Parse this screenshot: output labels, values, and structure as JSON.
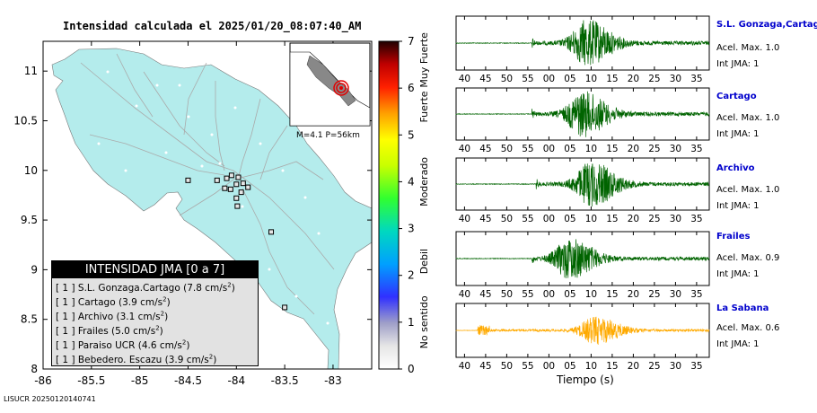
{
  "title": "Intensidad calculada el 2025/01/20_08:07:40_AM",
  "footer_code": "LISUCR 20250120140741",
  "map": {
    "x_ticks": [
      "-86",
      "-85.5",
      "-85",
      "-84.5",
      "-84",
      "-83.5",
      "-83"
    ],
    "y_ticks": [
      "11",
      "10.5",
      "10",
      "9.5",
      "9",
      "8.5",
      "8"
    ],
    "land_color": "#b4ecec",
    "inset_label": "M=4.1 P=56km"
  },
  "colorbar": {
    "ticks": [
      "0",
      "1",
      "2",
      "3",
      "4",
      "5",
      "6",
      "7"
    ],
    "bands": [
      "No sentido",
      "Debil",
      "Moderado",
      "Fuerte",
      "Muy Fuerte"
    ]
  },
  "legend": {
    "title": "INTENSIDAD JMA [0 a 7]",
    "rows": [
      {
        "level": "[ 1 ]",
        "name": "S.L. Gonzaga.Cartago",
        "value": "(7.8 cm/s",
        "unit_exp": "2",
        ")": ")"
      },
      {
        "level": "[ 1 ]",
        "name": "Cartago",
        "value": "(3.9 cm/s",
        "unit_exp": "2"
      },
      {
        "level": "[ 1 ]",
        "name": "Archivo",
        "value": "(3.1 cm/s",
        "unit_exp": "2"
      },
      {
        "level": "[ 1 ]",
        "name": "Frailes",
        "value": "(5.0 cm/s",
        "unit_exp": "2"
      },
      {
        "level": "[ 1 ]",
        "name": "Paraiso UCR",
        "value": "(4.6 cm/s",
        "unit_exp": "2"
      },
      {
        "level": "[ 1 ]",
        "name": "Bebedero. Escazu",
        "value": "(3.9 cm/s",
        "unit_exp": "2"
      }
    ],
    "close_paren": ")"
  },
  "stations": [
    {
      "name": "S.L. Gonzaga,Cartago",
      "accel": "Acel. Max. 1.0",
      "jma": "Int JMA: 1",
      "color": "#006400",
      "ticks": [
        "40",
        "45",
        "50",
        "55",
        "00",
        "05",
        "10",
        "15",
        "20",
        "25",
        "30",
        "35"
      ]
    },
    {
      "name": "Cartago",
      "accel": "Acel. Max. 1.0",
      "jma": "Int JMA: 1",
      "color": "#006400",
      "ticks": [
        "40",
        "45",
        "50",
        "55",
        "00",
        "05",
        "10",
        "15",
        "20",
        "25",
        "30",
        "35"
      ]
    },
    {
      "name": "Archivo",
      "accel": "Acel. Max. 1.0",
      "jma": "Int JMA: 1",
      "color": "#006400",
      "ticks": [
        "40",
        "45",
        "50",
        "55",
        "00",
        "05",
        "10",
        "15",
        "20",
        "25",
        "30",
        "35"
      ]
    },
    {
      "name": "Frailes",
      "accel": "Acel. Max. 0.9",
      "jma": "Int JMA: 1",
      "color": "#006400",
      "ticks": [
        "40",
        "45",
        "50",
        "55",
        "00",
        "05",
        "10",
        "15",
        "20",
        "25",
        "30",
        "35"
      ]
    },
    {
      "name": "La Sabana",
      "accel": "Acel. Max. 0.6",
      "jma": "Int JMA: 1",
      "color": "#ffaa00",
      "ticks": [
        "40",
        "45",
        "50",
        "55",
        "00",
        "05",
        "10",
        "15",
        "20",
        "25",
        "30",
        "35"
      ]
    }
  ],
  "waveform_xlabel": "Tiempo (s)",
  "chart_data": [
    {
      "type": "scatter",
      "title": "Intensidad calculada el 2025/01/20_08:07:40_AM",
      "xlabel": "",
      "ylabel": "",
      "xlim": [
        -86,
        -82.6
      ],
      "ylim": [
        8,
        11.3
      ],
      "x_ticks": [
        -86,
        -85.5,
        -85,
        -84.5,
        -84,
        -83.5,
        -83
      ],
      "y_ticks": [
        8,
        8.5,
        9,
        9.5,
        10,
        10.5,
        11
      ],
      "series": [
        {
          "name": "",
          "points": [
            {
              "lon": -84.1,
              "lat": 9.92
            },
            {
              "lon": -84.05,
              "lat": 9.95
            },
            {
              "lon": -83.98,
              "lat": 9.93
            },
            {
              "lon": -84.0,
              "lat": 9.86
            },
            {
              "lon": -83.93,
              "lat": 9.87
            },
            {
              "lon": -84.12,
              "lat": 9.82
            },
            {
              "lon": -84.06,
              "lat": 9.81
            },
            {
              "lon": -83.88,
              "lat": 9.83
            },
            {
              "lon": -84.2,
              "lat": 9.9
            },
            {
              "lon": -83.95,
              "lat": 9.78
            },
            {
              "lon": -84.5,
              "lat": 9.9
            },
            {
              "lon": -83.99,
              "lat": 9.64
            },
            {
              "lon": -84.0,
              "lat": 9.72
            },
            {
              "lon": -83.64,
              "lat": 9.38
            },
            {
              "lon": -83.5,
              "lat": 8.62
            }
          ]
        }
      ],
      "epicenter": {
        "lon": -83.9,
        "lat": 9.86
      },
      "magnitude": "M=4.1",
      "depth": "P=56km"
    },
    {
      "type": "line",
      "title": "",
      "xlabel": "Tiempo (s)",
      "x_ticks": [
        "40",
        "45",
        "50",
        "55",
        "00",
        "05",
        "10",
        "15",
        "20",
        "25",
        "30",
        "35"
      ],
      "series": [
        {
          "name": "S.L. Gonzaga,Cartago",
          "peak": 1.0,
          "onset_s": 56,
          "peak_s": 69
        },
        {
          "name": "Cartago",
          "peak": 1.0,
          "onset_s": 56,
          "peak_s": 68
        },
        {
          "name": "Archivo",
          "peak": 1.0,
          "onset_s": 57,
          "peak_s": 70
        },
        {
          "name": "Frailes",
          "peak": 0.9,
          "onset_s": 56,
          "peak_s": 65
        },
        {
          "name": "La Sabana",
          "peak": 0.6,
          "onset_s": 44,
          "peak_s": 71
        }
      ]
    }
  ]
}
